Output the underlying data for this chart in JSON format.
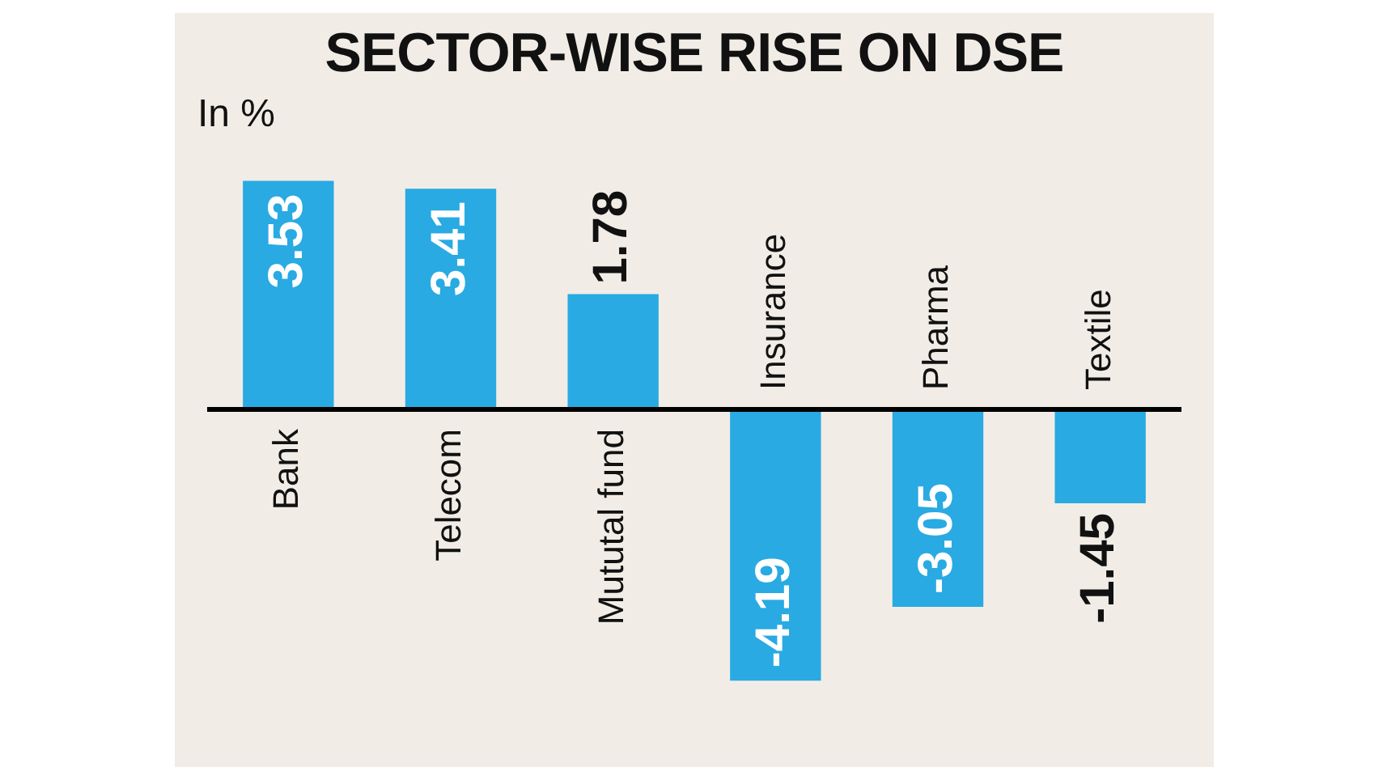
{
  "chart_data": {
    "type": "bar",
    "title": "SECTOR-WISE RISE ON DSE",
    "subtitle": "In %",
    "categories": [
      "Bank",
      "Telecom",
      "Mututal fund",
      "Insurance",
      "Pharma",
      "Textile"
    ],
    "values": [
      3.53,
      3.41,
      1.78,
      -4.19,
      -3.05,
      -1.45
    ],
    "color": "#29aae2",
    "tick_labels": "x",
    "data_labels": true
  }
}
